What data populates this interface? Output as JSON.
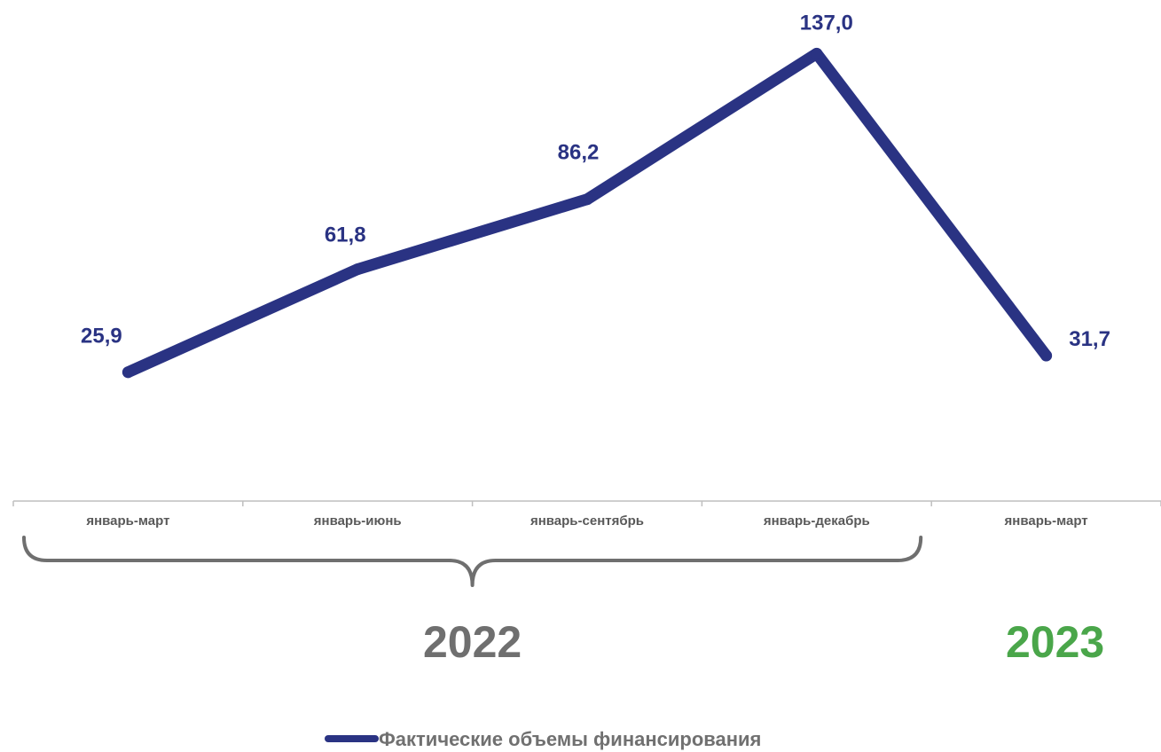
{
  "chart_data": {
    "type": "line",
    "categories": [
      "январь-март",
      "январь-июнь",
      "январь-сентябрь",
      "январь-декабрь",
      "январь-март"
    ],
    "series": [
      {
        "name": "Фактические объемы финансирования",
        "values": [
          25.9,
          61.8,
          86.2,
          137.0,
          31.7
        ],
        "labels": [
          "25,9",
          "61,8",
          "86,2",
          "137,0",
          "31,7"
        ],
        "color": "#2a3383"
      }
    ],
    "groups": [
      {
        "label": "2022",
        "from": 0,
        "to": 3,
        "color": "#6f6f6f"
      },
      {
        "label": "2023",
        "from": 4,
        "to": 4,
        "color": "#4aa64a"
      }
    ],
    "title": "",
    "xlabel": "",
    "ylabel": "",
    "ylim": [
      0,
      150
    ],
    "grid": false,
    "legend_position": "bottom-center"
  },
  "colors": {
    "axis": "#bfbfbf",
    "tick_text": "#595959",
    "brace": "#6f6f6f",
    "legend_text": "#707070"
  }
}
